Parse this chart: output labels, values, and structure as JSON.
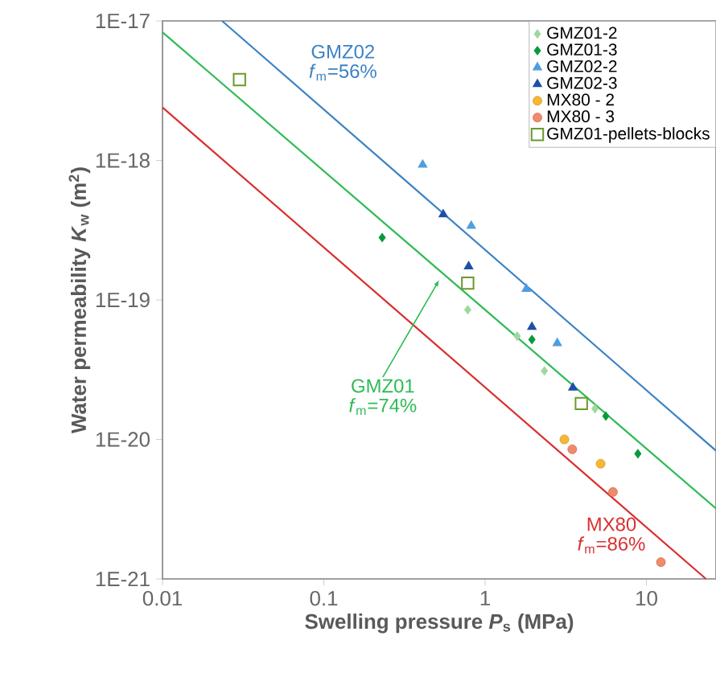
{
  "chart_data": {
    "type": "scatter",
    "xlabel": "Swelling pressure *P*$_{s}$  (MPa)",
    "ylabel": "Water permeability *K*$_{w}$  (m$^{2}$)",
    "log": "xy",
    "xlim": [
      0.01,
      27
    ],
    "ylim": [
      1e-21,
      1e-17
    ],
    "xticks": [
      0.01,
      0.1,
      1,
      10
    ],
    "yticks": [
      {
        "value": 1e-21,
        "label": "1E-21"
      },
      {
        "value": 1e-20,
        "label": "1E-20"
      },
      {
        "value": 1e-19,
        "label": "1E-19"
      },
      {
        "value": 1e-18,
        "label": "1E-18"
      },
      {
        "value": 1e-17,
        "label": "1E-17"
      }
    ],
    "legend": "top right",
    "series": [
      {
        "name": "GMZ01-2",
        "color": "#9fd89f",
        "marker": "diamond",
        "x": [
          0.78,
          1.58,
          2.33,
          4.8
        ],
        "values": [
          8.5e-20,
          5.5e-20,
          3.1e-20,
          1.66e-20
        ]
      },
      {
        "name": "GMZ01-3",
        "color": "#0a9a3c",
        "marker": "diamond",
        "x": [
          0.23,
          1.95,
          5.6,
          8.85
        ],
        "values": [
          2.8e-19,
          5.2e-20,
          1.47e-20,
          7.9e-21
        ]
      },
      {
        "name": "GMZ02-2",
        "color": "#4d9ee0",
        "marker": "triangle",
        "x": [
          0.41,
          0.82,
          1.8,
          2.8
        ],
        "values": [
          9.3e-19,
          3.4e-19,
          1.2e-19,
          4.9e-20
        ]
      },
      {
        "name": "GMZ02-3",
        "color": "#1f4fa8",
        "marker": "triangle",
        "x": [
          0.55,
          0.79,
          1.95,
          3.5
        ],
        "values": [
          4.1e-19,
          1.74e-19,
          6.4e-20,
          2.35e-20
        ]
      },
      {
        "name": "MX80 - 2",
        "color": "#f7b733",
        "marker": "circle",
        "x": [
          3.1,
          5.2
        ],
        "values": [
          1e-20,
          6.7e-21
        ]
      },
      {
        "name": "MX80 - 3",
        "color": "#f08a6a",
        "marker": "circle",
        "x": [
          3.47,
          6.2,
          12.3
        ],
        "values": [
          8.5e-21,
          4.2e-21,
          1.32e-21
        ]
      },
      {
        "name": "GMZ01-pellets-blocks",
        "color": "#6a9a2a",
        "marker": "square",
        "x": [
          0.03,
          0.78,
          3.95
        ],
        "values": [
          3.8e-18,
          1.32e-19,
          1.81e-20
        ]
      },
      {
        "type": "line",
        "name": "GMZ02",
        "color": "#3b82c4",
        "x": [
          0.0234,
          27
        ],
        "values": [
          1e-17,
          8.3e-21
        ]
      },
      {
        "type": "line",
        "name": "GMZ01",
        "color": "#2dbb55",
        "x": [
          0.01,
          27
        ],
        "values": [
          8.3e-18,
          3.2e-21
        ]
      },
      {
        "type": "line",
        "name": "MX80",
        "color": "#d93030",
        "x": [
          0.01,
          23.4
        ],
        "values": [
          2.4e-18,
          1e-21
        ]
      }
    ],
    "annotations": [
      "*f*$_{m}$=56%",
      "*f*$_{m}$=74%",
      "*f*$_{m}$=86%"
    ]
  }
}
